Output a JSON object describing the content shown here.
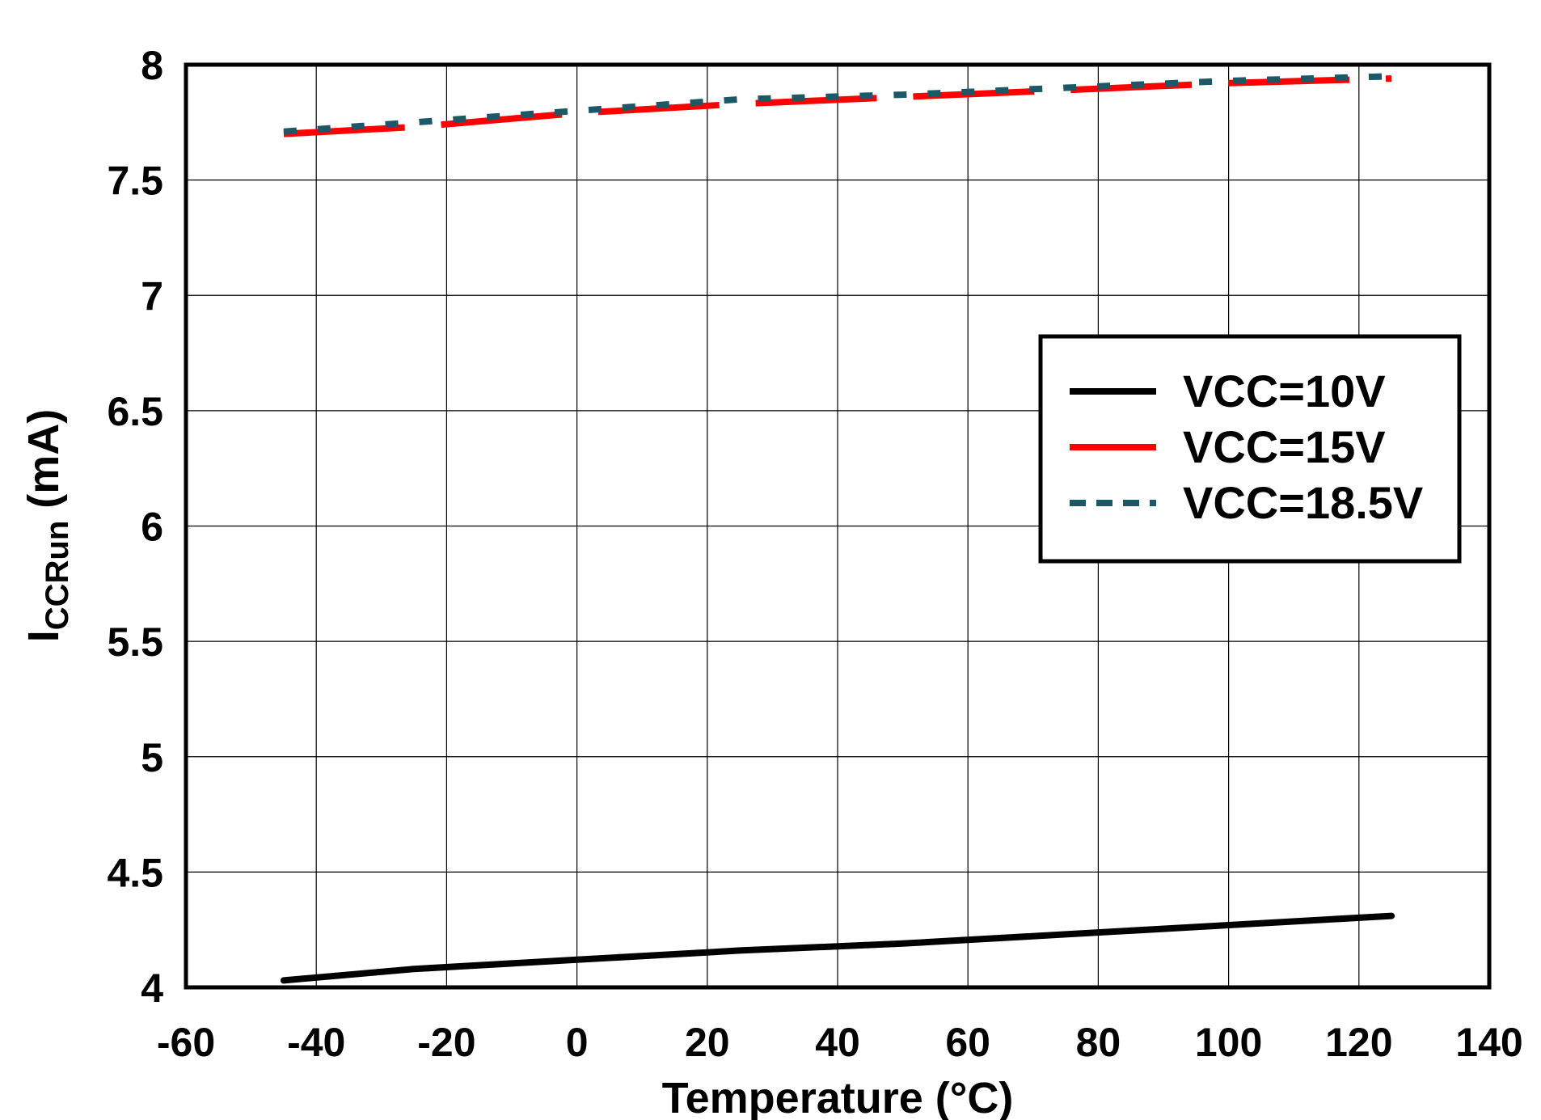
{
  "chart_data": {
    "type": "line",
    "title": "",
    "xlabel": "Temperature (°C)",
    "ylabel": {
      "main": "I",
      "subscript": "CCRun",
      "unit": " (mA)"
    },
    "xlim": [
      -60,
      140
    ],
    "ylim": [
      4,
      8
    ],
    "xticks": [
      -60,
      -40,
      -20,
      0,
      20,
      40,
      60,
      80,
      100,
      120,
      140
    ],
    "xtick_labels": [
      "-60",
      "-40",
      "-20",
      "0",
      "20",
      "40",
      "60",
      "80",
      "100",
      "120",
      "140"
    ],
    "yticks": [
      4,
      4.5,
      5,
      5.5,
      6,
      6.5,
      7,
      7.5,
      8
    ],
    "ytick_labels": [
      "4",
      "4.5",
      "5",
      "5.5",
      "6",
      "6.5",
      "7",
      "7.5",
      "8"
    ],
    "grid": true,
    "legend_position": "right",
    "series": [
      {
        "name": "VCC=10V",
        "color": "#000000",
        "style": "solid",
        "x": [
          -45,
          -25,
          0,
          25,
          50,
          75,
          100,
          125
        ],
        "y": [
          4.03,
          4.08,
          4.12,
          4.16,
          4.19,
          4.23,
          4.27,
          4.31
        ]
      },
      {
        "name": "VCC=15V",
        "color": "#ff0000",
        "style": "solid-segmented",
        "x": [
          -45,
          -25,
          0,
          25,
          50,
          75,
          100,
          125
        ],
        "y": [
          7.7,
          7.73,
          7.79,
          7.83,
          7.86,
          7.89,
          7.92,
          7.94
        ]
      },
      {
        "name": "VCC=18.5V",
        "color": "#1c5866",
        "style": "dashed",
        "x": [
          -45,
          -25,
          0,
          25,
          50,
          75,
          100,
          125
        ],
        "y": [
          7.71,
          7.75,
          7.8,
          7.85,
          7.87,
          7.9,
          7.93,
          7.95
        ]
      }
    ]
  }
}
